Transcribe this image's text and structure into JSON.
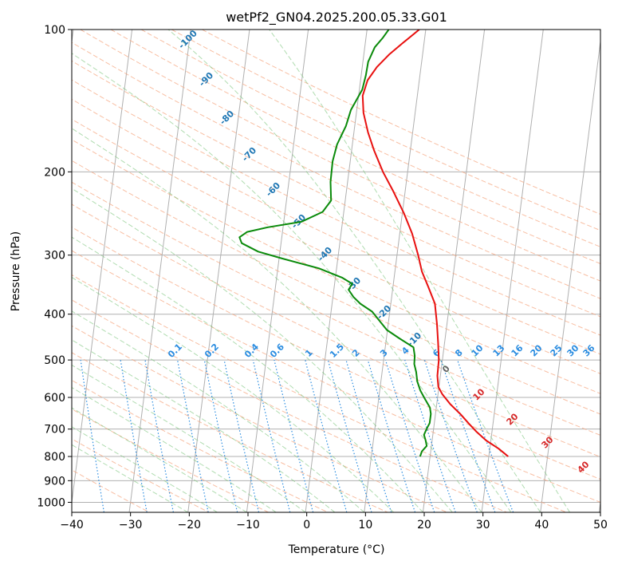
{
  "chart_data": {
    "type": "line",
    "title": "wetPf2_GN04.2025.200.05.33.G01",
    "xlabel": "Temperature (°C)",
    "ylabel": "Pressure (hPa)",
    "xlim": [
      -40,
      50
    ],
    "ylim": [
      1050,
      100
    ],
    "y_scale": "log",
    "grid": true,
    "x_ticks": [
      -40,
      -30,
      -20,
      -10,
      0,
      10,
      20,
      30,
      40,
      50
    ],
    "y_ticks": [
      100,
      200,
      300,
      400,
      500,
      600,
      700,
      800,
      900,
      1000
    ],
    "colors": {
      "temperature": "#e8100f",
      "dewpoint": "#0a8a0a",
      "dry_adiabat": "#f5a27a",
      "moist_adiabat": "#7cc47c",
      "mixing_ratio": "#2a8ce0",
      "isotherm_label": "#1f77b4",
      "mixing_label": "#2a8ce0",
      "moist_label": "#d62728",
      "grid": "#b0b0b0"
    },
    "isotherm_labels": [
      "-100",
      "-90",
      "-80",
      "-70",
      "-60",
      "-50",
      "-40",
      "-30",
      "-20",
      "-10"
    ],
    "mixing_ratio_labels": [
      "0.1",
      "0.2",
      "0.4",
      "0.6",
      "1",
      "1.5",
      "2",
      "3",
      "4",
      "6",
      "8",
      "10",
      "13",
      "16",
      "20",
      "25",
      "30",
      "36"
    ],
    "moist_adiabat_labels": [
      "0",
      "10",
      "20",
      "30",
      "40"
    ],
    "series": [
      {
        "name": "temperature",
        "points": [
          {
            "T": 33.3,
            "p": 800
          },
          {
            "T": 31.5,
            "p": 770
          },
          {
            "T": 29.2,
            "p": 740
          },
          {
            "T": 27.4,
            "p": 710
          },
          {
            "T": 25.8,
            "p": 680
          },
          {
            "T": 24.2,
            "p": 650
          },
          {
            "T": 22.3,
            "p": 620
          },
          {
            "T": 20.7,
            "p": 590
          },
          {
            "T": 19.9,
            "p": 570
          },
          {
            "T": 19.5,
            "p": 540
          },
          {
            "T": 19.4,
            "p": 500
          },
          {
            "T": 18.9,
            "p": 460
          },
          {
            "T": 18.3,
            "p": 420
          },
          {
            "T": 17.5,
            "p": 380
          },
          {
            "T": 16.0,
            "p": 350
          },
          {
            "T": 14.6,
            "p": 325
          },
          {
            "T": 13.6,
            "p": 300
          },
          {
            "T": 12.1,
            "p": 270
          },
          {
            "T": 10.3,
            "p": 245
          },
          {
            "T": 8.0,
            "p": 220
          },
          {
            "T": 5.8,
            "p": 200
          },
          {
            "T": 3.8,
            "p": 180
          },
          {
            "T": 2.4,
            "p": 165
          },
          {
            "T": 1.2,
            "p": 150
          },
          {
            "T": 0.7,
            "p": 138
          },
          {
            "T": 1.2,
            "p": 128
          },
          {
            "T": 2.5,
            "p": 120
          },
          {
            "T": 4.3,
            "p": 113
          },
          {
            "T": 6.3,
            "p": 107
          },
          {
            "T": 8.9,
            "p": 100
          }
        ]
      },
      {
        "name": "dewpoint",
        "points": [
          {
            "T": 18.3,
            "p": 800
          },
          {
            "T": 18.5,
            "p": 780
          },
          {
            "T": 19.2,
            "p": 760
          },
          {
            "T": 18.9,
            "p": 740
          },
          {
            "T": 18.5,
            "p": 720
          },
          {
            "T": 18.8,
            "p": 700
          },
          {
            "T": 19.2,
            "p": 680
          },
          {
            "T": 19.2,
            "p": 650
          },
          {
            "T": 18.9,
            "p": 630
          },
          {
            "T": 17.9,
            "p": 605
          },
          {
            "T": 16.9,
            "p": 580
          },
          {
            "T": 16.2,
            "p": 555
          },
          {
            "T": 15.8,
            "p": 530
          },
          {
            "T": 15.3,
            "p": 510
          },
          {
            "T": 15.2,
            "p": 490
          },
          {
            "T": 14.8,
            "p": 470
          },
          {
            "T": 12.2,
            "p": 450
          },
          {
            "T": 9.9,
            "p": 432
          },
          {
            "T": 8.6,
            "p": 415
          },
          {
            "T": 7.0,
            "p": 395
          },
          {
            "T": 4.8,
            "p": 380
          },
          {
            "T": 3.5,
            "p": 368
          },
          {
            "T": 2.5,
            "p": 355
          },
          {
            "T": 3.0,
            "p": 345
          },
          {
            "T": 1.2,
            "p": 335
          },
          {
            "T": -3.0,
            "p": 320
          },
          {
            "T": -9.5,
            "p": 305
          },
          {
            "T": -13.7,
            "p": 295
          },
          {
            "T": -16.7,
            "p": 283
          },
          {
            "T": -17.2,
            "p": 275
          },
          {
            "T": -16.0,
            "p": 268
          },
          {
            "T": -12.6,
            "p": 262
          },
          {
            "T": -7.0,
            "p": 255
          },
          {
            "T": -3.6,
            "p": 243
          },
          {
            "T": -2.4,
            "p": 230
          },
          {
            "T": -2.9,
            "p": 210
          },
          {
            "T": -3.0,
            "p": 190
          },
          {
            "T": -2.6,
            "p": 175
          },
          {
            "T": -1.5,
            "p": 160
          },
          {
            "T": -1.0,
            "p": 148
          },
          {
            "T": 0.5,
            "p": 134
          },
          {
            "T": 0.8,
            "p": 125
          },
          {
            "T": 0.9,
            "p": 117
          },
          {
            "T": 1.7,
            "p": 109
          },
          {
            "T": 2.9,
            "p": 104
          },
          {
            "T": 3.7,
            "p": 100
          }
        ]
      }
    ]
  }
}
